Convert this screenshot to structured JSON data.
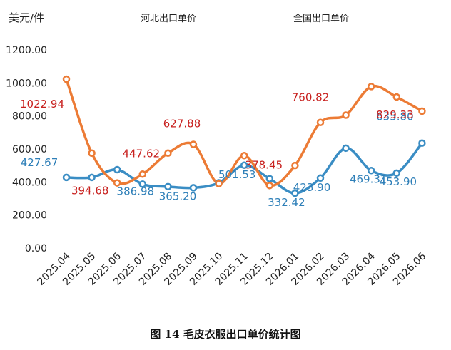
{
  "chart_data": {
    "type": "line",
    "unit_label": "美元/件",
    "categories": [
      "2025.04",
      "2025.05",
      "2025.06",
      "2025.07",
      "2025.08",
      "2025.09",
      "2025.10",
      "2025.11",
      "2025.12",
      "2026.01",
      "2026.02",
      "2026.03",
      "2026.04",
      "2026.05",
      "2026.06"
    ],
    "y_ticks": [
      "0.00",
      "200.00",
      "400.00",
      "600.00",
      "800.00",
      "1000.00",
      "1200.00"
    ],
    "ylim": [
      0,
      1200
    ],
    "grid": false,
    "legend_position": "top",
    "series": [
      {
        "name": "河北出口单价",
        "color": "#3a8dc4",
        "values": [
          427.67,
          427.67,
          475,
          386.98,
          372,
          365.2,
          395,
          501.53,
          420,
          332.42,
          423.9,
          605,
          469.31,
          453.9,
          635.8
        ],
        "labels": {
          "0": "427.67",
          "3": "386.98",
          "5": "365.20",
          "7": "501.53",
          "9": "332.42",
          "10": "423.90",
          "12": "469.31",
          "13": "453.90",
          "14": "635.80"
        },
        "label_color": "#2e7fb8"
      },
      {
        "name": "全国出口单价",
        "color": "#ec7b35",
        "values": [
          1022.94,
          575,
          394.68,
          447.62,
          575,
          627.88,
          390,
          560,
          378.45,
          500,
          760.82,
          805,
          978,
          915,
          829.33
        ],
        "labels": {
          "0": "1022.94",
          "2": "394.68",
          "3": "447.62",
          "5": "627.88",
          "8": "378.45",
          "10": "760.82",
          "14": "829.33"
        },
        "label_color": "#c8211f"
      }
    ]
  },
  "caption": "图 14  毛皮衣服出口单价统计图"
}
